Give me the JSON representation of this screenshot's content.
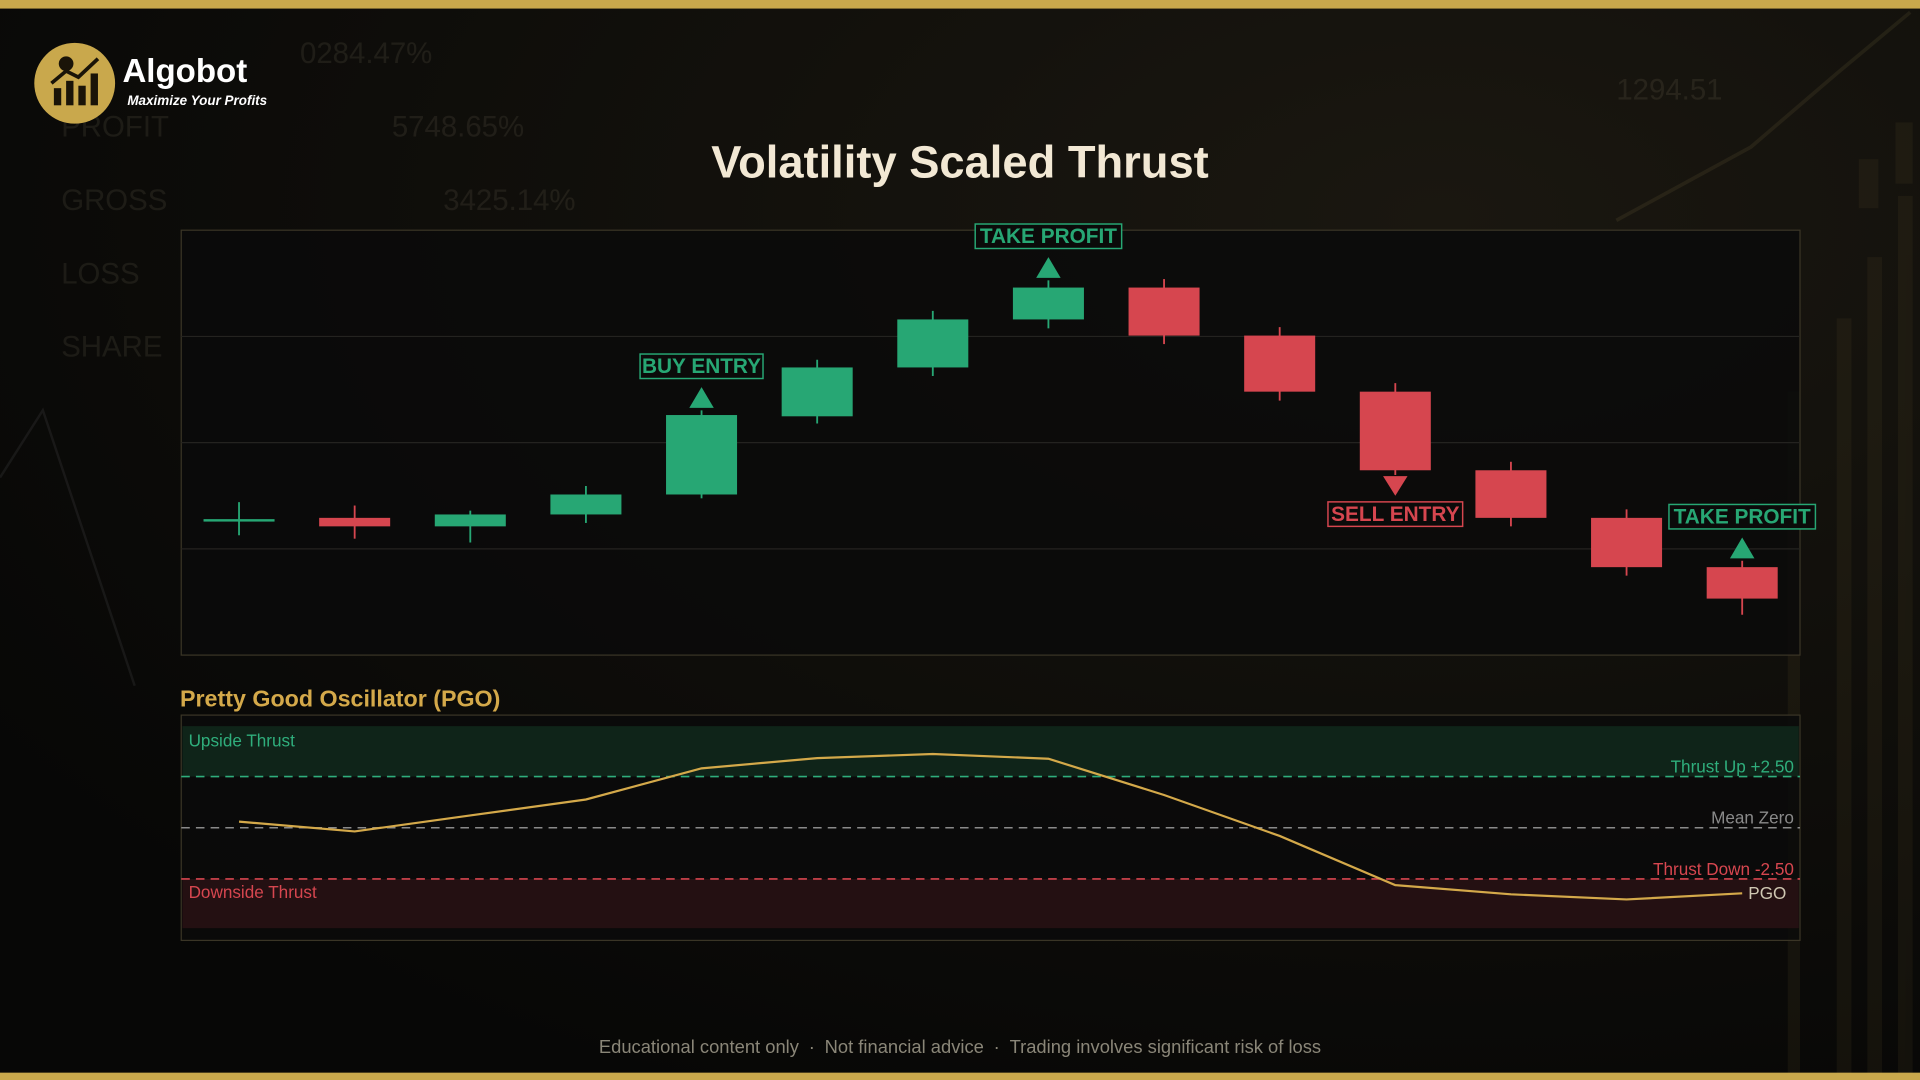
{
  "header": {
    "brand": "Algobot",
    "tagline": "Maximize Your Profits"
  },
  "background_texts": [
    "0284.47%",
    "PROFIT",
    "5748.65%",
    "GROSS",
    "3425.14%",
    "LOSS",
    "SHARE",
    "1294.51"
  ],
  "chart_data": [
    {
      "type": "candlestick",
      "title": "Volatility Scaled Thrust",
      "categories": [
        null,
        null,
        null,
        null,
        null,
        null,
        null,
        null,
        null,
        null,
        null,
        null,
        null,
        null
      ],
      "open": [
        32.0,
        32.3,
        30.3,
        33.1,
        37.8,
        56.2,
        67.7,
        79.0,
        86.5,
        75.2,
        62.0,
        43.5,
        32.3,
        20.7
      ],
      "high": [
        36.0,
        35.2,
        34.0,
        39.8,
        57.6,
        69.5,
        81.0,
        88.2,
        88.5,
        77.2,
        64.0,
        45.5,
        34.3,
        22.2
      ],
      "low": [
        28.2,
        27.4,
        26.5,
        31.1,
        36.9,
        54.5,
        65.7,
        76.9,
        73.2,
        59.9,
        42.4,
        30.3,
        18.7,
        9.5
      ],
      "close": [
        32.0,
        30.3,
        33.1,
        37.8,
        56.5,
        67.7,
        79.0,
        86.5,
        75.2,
        62.0,
        43.5,
        32.3,
        20.7,
        13.3
      ],
      "up_color": "#27a774",
      "down_color": "#d6464f",
      "ylim": [
        0,
        100
      ],
      "yticks": [
        25,
        50,
        75
      ],
      "grid": true,
      "signals": [
        null,
        null,
        null,
        null,
        {
          "label": "BUY ENTRY",
          "direction": "up",
          "color": "#27a774"
        },
        null,
        null,
        {
          "label": "TAKE PROFIT",
          "direction": "up",
          "color": "#27a774"
        },
        null,
        null,
        {
          "label": "SELL ENTRY",
          "direction": "down",
          "color": "#d6464f"
        },
        null,
        null,
        {
          "label": "TAKE PROFIT",
          "direction": "up",
          "color": "#27a774"
        }
      ]
    },
    {
      "type": "line",
      "title": "Pretty Good Oscillator (PGO)",
      "categories": [
        null,
        null,
        null,
        null,
        null,
        null,
        null,
        null,
        null,
        null,
        null,
        null,
        null,
        null
      ],
      "series": [
        {
          "name": "PGO",
          "color": "#d4a94a",
          "values": [
            0.3,
            -0.18,
            0.6,
            1.38,
            2.9,
            3.4,
            3.6,
            3.37,
            1.6,
            -0.4,
            -2.8,
            -3.25,
            -3.5,
            -3.2
          ]
        }
      ],
      "ylim": [
        -5.5,
        5.5
      ],
      "reference_lines": [
        {
          "label": "Thrust Up +2.50",
          "value": 2.5,
          "color": "#2fae7c"
        },
        {
          "label": "Mean Zero",
          "value": 0,
          "color": "#8a8a8a"
        },
        {
          "label": "Thrust Down -2.50",
          "value": -2.5,
          "color": "#d6464f"
        }
      ],
      "zones": [
        {
          "label": "Upside Thrust",
          "color": "#2fae7c",
          "fill": "#0f2419"
        },
        {
          "label": "Downside Thrust",
          "color": "#d6464f",
          "fill": "#241012"
        }
      ]
    }
  ],
  "footer": {
    "items": [
      "Educational content only",
      "Not financial advice",
      "Trading involves significant risk of loss"
    ],
    "separator": "·"
  }
}
